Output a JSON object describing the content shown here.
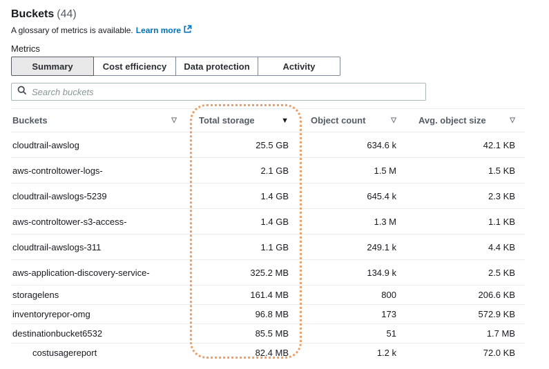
{
  "header": {
    "title": "Buckets",
    "count": "(44)",
    "glossary_text": "A glossary of metrics is available.",
    "learn_more_label": "Learn more"
  },
  "metrics_label": "Metrics",
  "tabs": [
    {
      "label": "Summary",
      "selected": true
    },
    {
      "label": "Cost efficiency",
      "selected": false
    },
    {
      "label": "Data protection",
      "selected": false
    },
    {
      "label": "Activity",
      "selected": false
    }
  ],
  "search": {
    "placeholder": "Search buckets"
  },
  "table": {
    "columns": [
      {
        "label": "Buckets",
        "sort": "none"
      },
      {
        "label": "Total storage",
        "sort": "desc"
      },
      {
        "label": "Object count",
        "sort": "none"
      },
      {
        "label": "Avg. object size",
        "sort": "none"
      }
    ],
    "rows": [
      {
        "bucket": "cloudtrail-awslog",
        "total_storage": "25.5 GB",
        "object_count": "634.6 k",
        "avg_object_size": "42.1 KB"
      },
      {
        "bucket": "aws-controltower-logs-",
        "total_storage": "2.1 GB",
        "object_count": "1.5 M",
        "avg_object_size": "1.5 KB"
      },
      {
        "bucket": "cloudtrail-awslogs-5239",
        "total_storage": "1.4 GB",
        "object_count": "645.4 k",
        "avg_object_size": "2.3 KB"
      },
      {
        "bucket": "aws-controltower-s3-access-",
        "total_storage": "1.4 GB",
        "object_count": "1.3 M",
        "avg_object_size": "1.1 KB"
      },
      {
        "bucket": "cloudtrail-awslogs-311",
        "total_storage": "1.1 GB",
        "object_count": "249.1 k",
        "avg_object_size": "4.4 KB"
      },
      {
        "bucket": "aws-application-discovery-service-",
        "total_storage": "325.2 MB",
        "object_count": "134.9 k",
        "avg_object_size": "2.5 KB"
      },
      {
        "bucket": "storagelens",
        "total_storage": "161.4 MB",
        "object_count": "800",
        "avg_object_size": "206.6 KB"
      },
      {
        "bucket": "inventoryrepor-omg",
        "total_storage": "96.8 MB",
        "object_count": "173",
        "avg_object_size": "572.9 KB"
      },
      {
        "bucket": "destinationbucket6532",
        "total_storage": "85.5 MB",
        "object_count": "51",
        "avg_object_size": "1.7 MB"
      },
      {
        "bucket": "costusagereport",
        "total_storage": "82.4 MB",
        "object_count": "1.2 k",
        "avg_object_size": "72.0 KB",
        "indented": true
      }
    ]
  },
  "icons": {
    "search": "magnifier",
    "external_link": "box-with-arrow",
    "sort_unsorted": "▽",
    "sort_descending": "▼"
  },
  "colors": {
    "link_blue": "#0073bb",
    "annotation_orange": "#eb9e66",
    "selected_tab_bg": "#e9e9e9",
    "row_divider": "#eaeded"
  }
}
